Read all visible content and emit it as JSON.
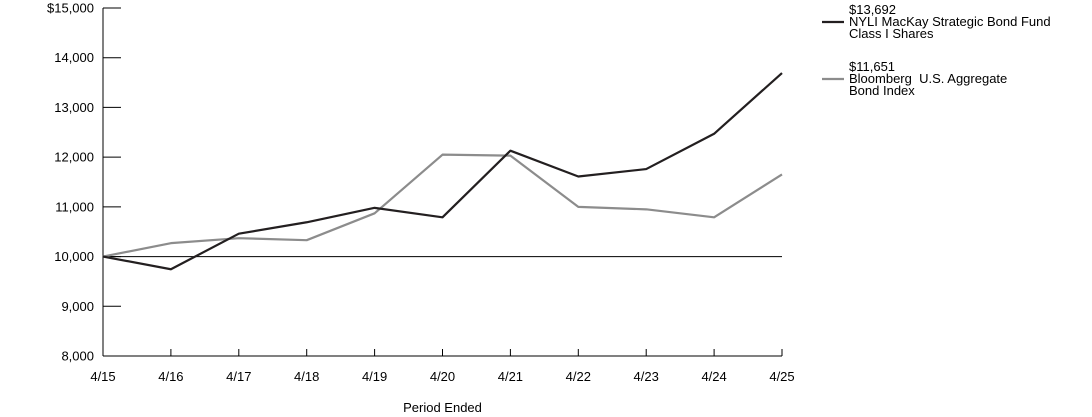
{
  "chart_data": {
    "type": "line",
    "title": "",
    "xlabel": "Period Ended",
    "ylabel": "",
    "categories": [
      "4/15",
      "4/16",
      "4/17",
      "4/18",
      "4/19",
      "4/20",
      "4/21",
      "4/22",
      "4/23",
      "4/24",
      "4/25"
    ],
    "ylim": [
      8000,
      15000
    ],
    "yticks": [
      8000,
      9000,
      10000,
      11000,
      12000,
      13000,
      14000,
      15000
    ],
    "ytick_labels": [
      "8,000",
      "9,000",
      "10,000",
      "11,000",
      "12,000",
      "13,000",
      "14,000",
      "$15,000"
    ],
    "reference_line": 10000,
    "legend_position": "right",
    "series": [
      {
        "name": "NYLI MacKay Strategic Bond Fund Class I Shares",
        "name_lines": [
          "NYLI MacKay Strategic Bond Fund",
          "Class I Shares"
        ],
        "end_value_label": "$13,692",
        "color": "#231f20",
        "values": [
          10000,
          9745,
          10460,
          10690,
          10980,
          10790,
          12130,
          11610,
          11760,
          12470,
          13692
        ]
      },
      {
        "name": "Bloomberg U.S. Aggregate Bond Index",
        "name_lines": [
          "Bloomberg  U.S. Aggregate",
          "Bond Index"
        ],
        "end_value_label": "$11,651",
        "color": "#8c8c8c",
        "values": [
          10000,
          10270,
          10370,
          10330,
          10870,
          12050,
          12030,
          11000,
          10950,
          10790,
          11651
        ]
      }
    ]
  }
}
